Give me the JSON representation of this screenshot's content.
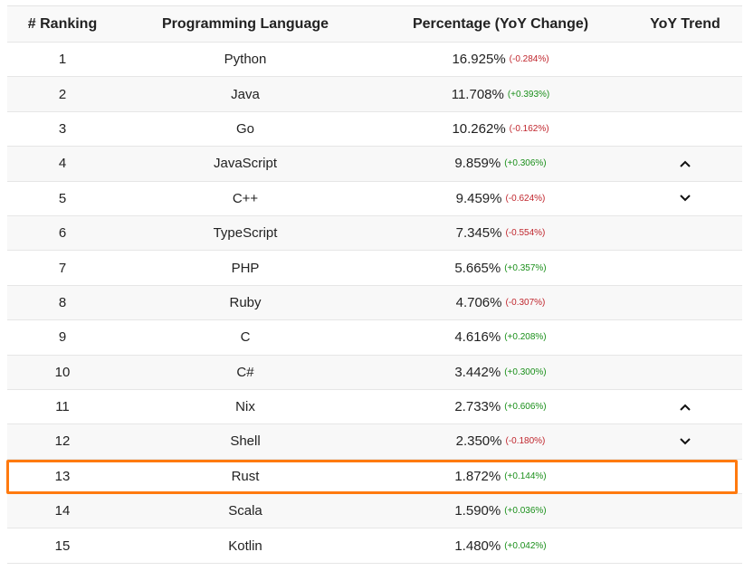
{
  "header": {
    "rank": "# Ranking",
    "language": "Programming Language",
    "percentage": "Percentage (YoY Change)",
    "trend": "YoY Trend"
  },
  "rows": [
    {
      "rank": "1",
      "language": "Python",
      "percentage": "16.925%",
      "change": "(-0.284%)",
      "direction": "down",
      "trend": ""
    },
    {
      "rank": "2",
      "language": "Java",
      "percentage": "11.708%",
      "change": "(+0.393%)",
      "direction": "up",
      "trend": ""
    },
    {
      "rank": "3",
      "language": "Go",
      "percentage": "10.262%",
      "change": "(-0.162%)",
      "direction": "down",
      "trend": ""
    },
    {
      "rank": "4",
      "language": "JavaScript",
      "percentage": "9.859%",
      "change": "(+0.306%)",
      "direction": "up",
      "trend": "chevron-up-icon"
    },
    {
      "rank": "5",
      "language": "C++",
      "percentage": "9.459%",
      "change": "(-0.624%)",
      "direction": "down",
      "trend": "chevron-down-icon"
    },
    {
      "rank": "6",
      "language": "TypeScript",
      "percentage": "7.345%",
      "change": "(-0.554%)",
      "direction": "down",
      "trend": ""
    },
    {
      "rank": "7",
      "language": "PHP",
      "percentage": "5.665%",
      "change": "(+0.357%)",
      "direction": "up",
      "trend": ""
    },
    {
      "rank": "8",
      "language": "Ruby",
      "percentage": "4.706%",
      "change": "(-0.307%)",
      "direction": "down",
      "trend": ""
    },
    {
      "rank": "9",
      "language": "C",
      "percentage": "4.616%",
      "change": "(+0.208%)",
      "direction": "up",
      "trend": ""
    },
    {
      "rank": "10",
      "language": "C#",
      "percentage": "3.442%",
      "change": "(+0.300%)",
      "direction": "up",
      "trend": ""
    },
    {
      "rank": "11",
      "language": "Nix",
      "percentage": "2.733%",
      "change": "(+0.606%)",
      "direction": "up",
      "trend": "chevron-up-icon"
    },
    {
      "rank": "12",
      "language": "Shell",
      "percentage": "2.350%",
      "change": "(-0.180%)",
      "direction": "down",
      "trend": "chevron-down-icon"
    },
    {
      "rank": "13",
      "language": "Rust",
      "percentage": "1.872%",
      "change": "(+0.144%)",
      "direction": "up",
      "trend": "",
      "highlighted": true
    },
    {
      "rank": "14",
      "language": "Scala",
      "percentage": "1.590%",
      "change": "(+0.036%)",
      "direction": "up",
      "trend": ""
    },
    {
      "rank": "15",
      "language": "Kotlin",
      "percentage": "1.480%",
      "change": "(+0.042%)",
      "direction": "up",
      "trend": ""
    }
  ],
  "colors": {
    "up": "#1a8f1a",
    "down": "#c0262d",
    "highlight": "#ff7a0f"
  }
}
